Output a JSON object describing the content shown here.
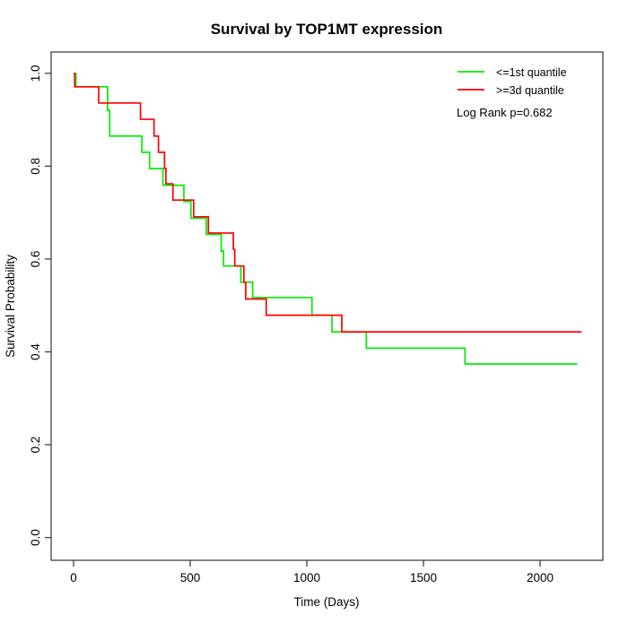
{
  "chart_data": {
    "type": "line",
    "subtype": "kaplan-meier-step",
    "title": "Survival by TOP1MT expression",
    "xlabel": "Time (Days)",
    "ylabel": "Survival Probability",
    "xlim": [
      -96,
      2269
    ],
    "ylim": [
      -0.049,
      1.046
    ],
    "grid": false,
    "x_ticks": {
      "values": [
        0,
        500,
        1000,
        1500,
        2000
      ],
      "labels": [
        "0",
        "500",
        "1000",
        "1500",
        "2000"
      ]
    },
    "y_ticks": {
      "values": [
        0.0,
        0.2,
        0.4,
        0.6,
        0.8,
        1.0
      ],
      "labels": [
        "0.0",
        "0.2",
        "0.4",
        "0.6",
        "0.8",
        "1.0"
      ]
    },
    "legend": {
      "position": "top-right",
      "entries": [
        {
          "label": "<=1st quantile",
          "color": "#00EE00"
        },
        {
          "label": ">=3d quantile",
          "color": "#FF0000"
        }
      ]
    },
    "annotation": {
      "text": "Log Rank p=0.682"
    },
    "series": [
      {
        "name": "<=1st quantile",
        "color": "#00EE00",
        "end_time": 2159,
        "steps": [
          [
            0,
            1.0
          ],
          [
            10,
            0.971
          ],
          [
            146,
            0.92
          ],
          [
            155,
            0.865
          ],
          [
            293,
            0.83
          ],
          [
            326,
            0.795
          ],
          [
            383,
            0.759
          ],
          [
            473,
            0.724
          ],
          [
            503,
            0.688
          ],
          [
            569,
            0.653
          ],
          [
            633,
            0.617
          ],
          [
            643,
            0.585
          ],
          [
            717,
            0.55
          ],
          [
            768,
            0.517
          ],
          [
            1022,
            0.479
          ],
          [
            1108,
            0.443
          ],
          [
            1255,
            0.408
          ],
          [
            1678,
            0.374
          ]
        ]
      },
      {
        "name": ">=3d quantile",
        "color": "#FF0000",
        "end_time": 2178,
        "steps": [
          [
            0,
            1.0
          ],
          [
            5,
            0.971
          ],
          [
            108,
            0.936
          ],
          [
            287,
            0.901
          ],
          [
            345,
            0.865
          ],
          [
            364,
            0.83
          ],
          [
            390,
            0.795
          ],
          [
            396,
            0.762
          ],
          [
            426,
            0.727
          ],
          [
            515,
            0.691
          ],
          [
            578,
            0.656
          ],
          [
            685,
            0.621
          ],
          [
            691,
            0.585
          ],
          [
            730,
            0.55
          ],
          [
            738,
            0.514
          ],
          [
            826,
            0.479
          ],
          [
            1150,
            0.443
          ]
        ]
      }
    ]
  }
}
